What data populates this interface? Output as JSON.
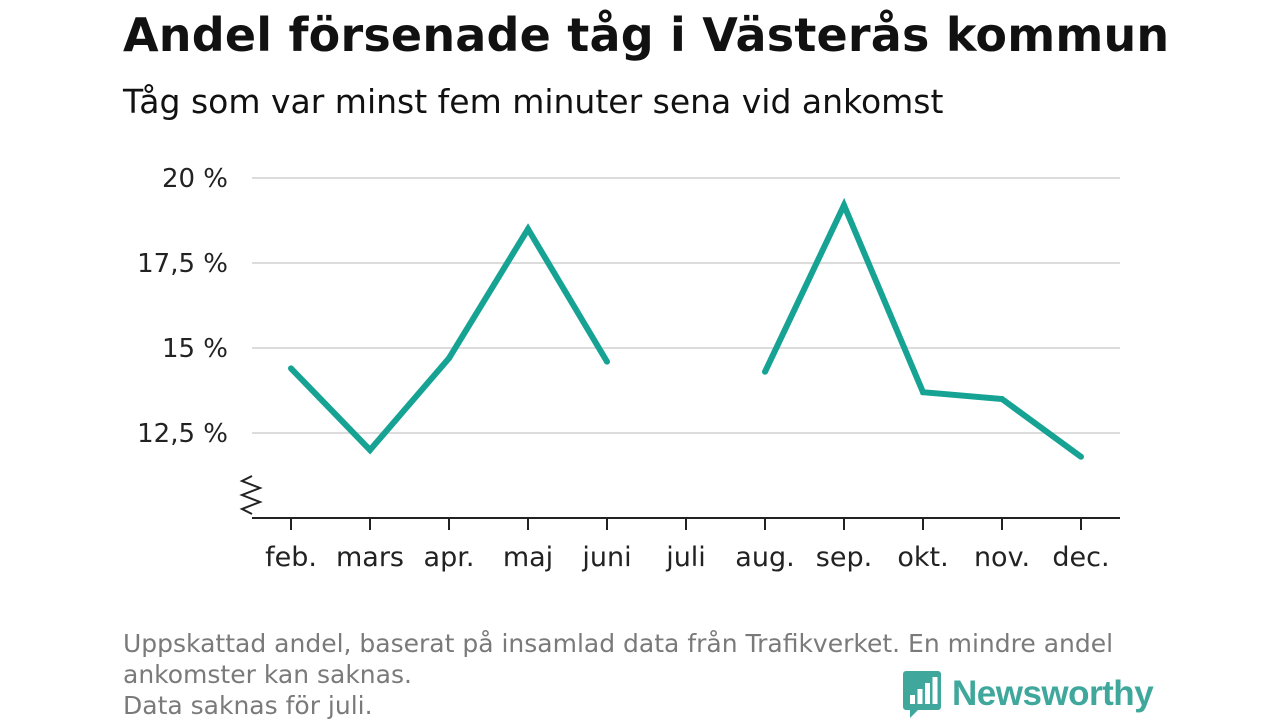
{
  "header": {
    "title": "Andel försenade tåg i Västerås kommun",
    "subtitle": "Tåg som var minst fem minuter sena vid ankomst"
  },
  "chart_data": {
    "type": "line",
    "categories": [
      "feb.",
      "mars",
      "apr.",
      "maj",
      "juni",
      "juli",
      "aug.",
      "sep.",
      "okt.",
      "nov.",
      "dec."
    ],
    "series": [
      {
        "values": [
          14.4,
          12.0,
          14.7,
          18.5,
          14.6,
          null,
          14.3,
          19.2,
          13.7,
          13.5,
          11.8
        ]
      }
    ],
    "yticks": [
      12.5,
      15,
      17.5,
      20
    ],
    "ytick_labels": [
      "12,5 %",
      "15 %",
      "17,5 %",
      "20 %"
    ],
    "ylim": [
      10.0,
      20.0
    ],
    "y_axis_break": true,
    "grid": true,
    "line_color": "#16a394"
  },
  "footer": {
    "note_line1": "Uppskattad andel, baserat på insamlad data från Trafikverket. En mindre andel ankomster kan saknas.",
    "note_line2": "Data saknas för juli.",
    "brand": "Newsworthy",
    "brand_icon": "bar-chart-logo-icon",
    "brand_color": "#3fa79b"
  }
}
